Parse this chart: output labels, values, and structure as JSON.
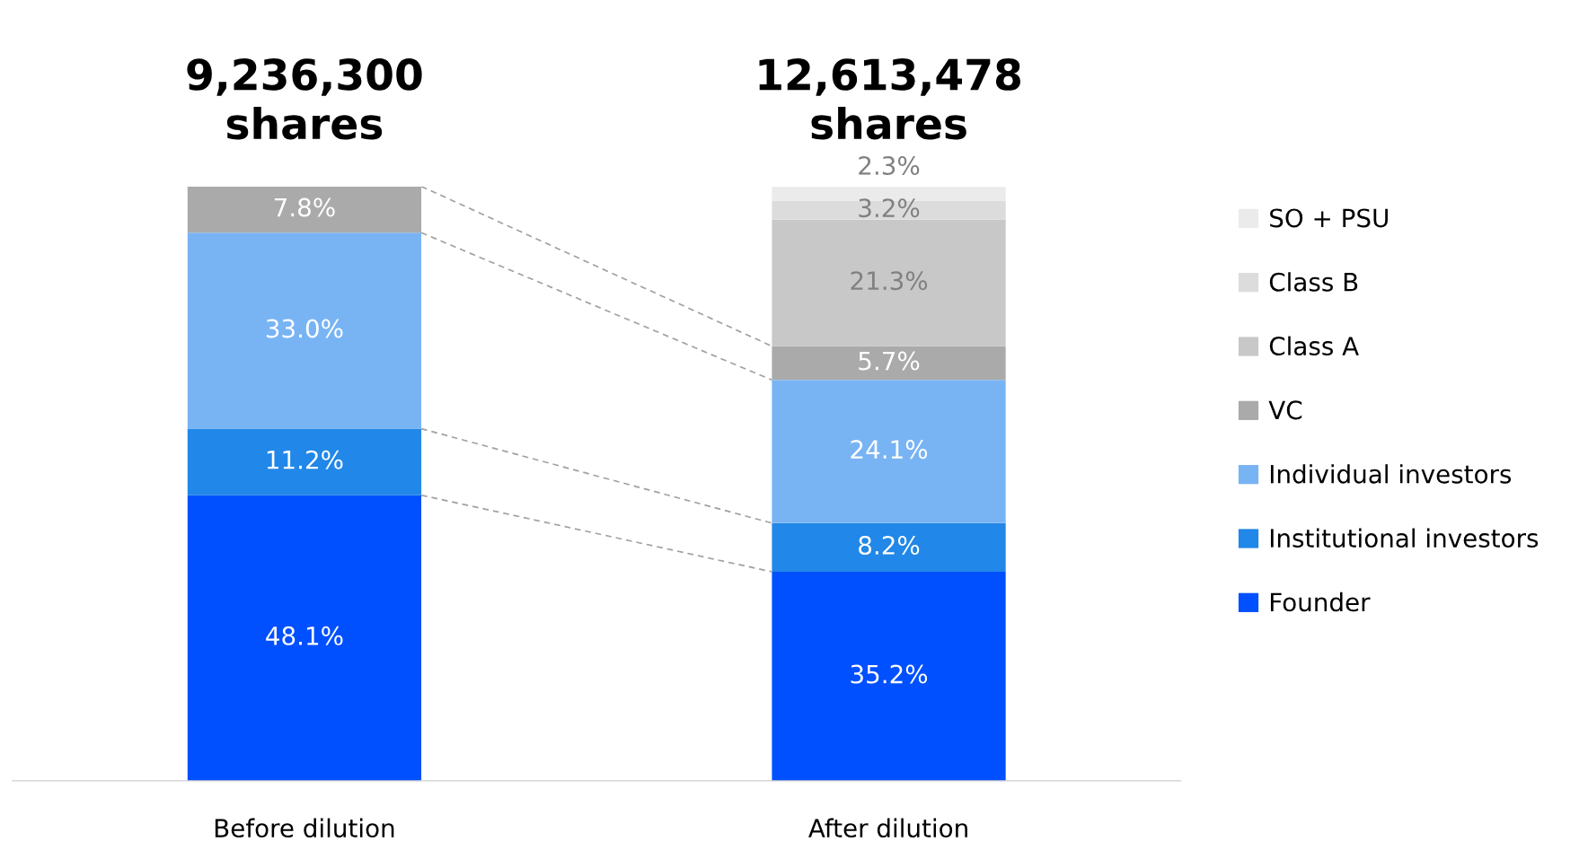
{
  "chart_data": {
    "type": "bar",
    "stacked": true,
    "categories": [
      "Before dilution",
      "After dilution"
    ],
    "series": [
      {
        "name": "Founder",
        "color": "#0050ff",
        "values": [
          48.1,
          35.2
        ],
        "value_labels": [
          "48.1%",
          "35.2%"
        ]
      },
      {
        "name": "Institutional investors",
        "color": "#2187e8",
        "values": [
          11.2,
          8.2
        ],
        "value_labels": [
          "11.2%",
          "8.2%"
        ]
      },
      {
        "name": "Individual investors",
        "color": "#78b4f4",
        "values": [
          33.0,
          24.1
        ],
        "value_labels": [
          "33.0%",
          "24.1%"
        ]
      },
      {
        "name": "VC",
        "color": "#aaaaaa",
        "values": [
          7.8,
          5.7
        ],
        "value_labels": [
          "7.8%",
          "5.7%"
        ]
      },
      {
        "name": "Class A",
        "color": "#c8c8c8",
        "values": [
          null,
          21.3
        ],
        "value_labels": [
          null,
          "21.3%"
        ]
      },
      {
        "name": "Class B",
        "color": "#dcdcdc",
        "values": [
          null,
          3.2
        ],
        "value_labels": [
          null,
          "3.2%"
        ]
      },
      {
        "name": "SO + PSU",
        "color": "#ebebeb",
        "values": [
          null,
          2.3
        ],
        "value_labels": [
          null,
          "2.3%"
        ]
      }
    ],
    "annotations": [
      "9,236,300\nshares",
      "12,613,478\nshares"
    ],
    "legend": "right",
    "grid": false
  }
}
